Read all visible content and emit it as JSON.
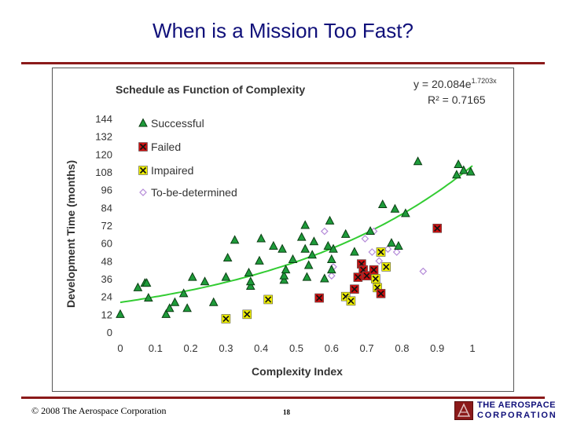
{
  "slide": {
    "title": "When is a Mission Too Fast?",
    "copyright": "© 2008 The Aerospace Corporation",
    "page_number": "18",
    "logo_line1": "THE AEROSPACE",
    "logo_line2": "CORPORATION"
  },
  "chart_data": {
    "type": "scatter",
    "title": "Schedule as Function of Complexity",
    "xlabel": "Complexity Index",
    "ylabel": "Development Time (months)",
    "xlim": [
      0,
      1
    ],
    "ylim": [
      0,
      144
    ],
    "xticks": [
      "0",
      "0.1",
      "0.2",
      "0.3",
      "0.4",
      "0.5",
      "0.6",
      "0.7",
      "0.8",
      "0.9",
      "1"
    ],
    "yticks": [
      "0",
      "12",
      "24",
      "36",
      "48",
      "60",
      "72",
      "84",
      "96",
      "108",
      "120",
      "132",
      "144"
    ],
    "grid": false,
    "legend_position": "top-left",
    "equation": "y = 20.084e",
    "equation_exponent": "1.7203x",
    "r_squared": "R² = 0.7165",
    "trendline": {
      "a": 20.084,
      "b": 1.7203,
      "color": "#33cc33"
    },
    "series": [
      {
        "name": "Successful",
        "marker": "triangle",
        "color": "#1e9b3a",
        "points": [
          [
            0.0,
            12
          ],
          [
            0.05,
            30
          ],
          [
            0.07,
            33
          ],
          [
            0.075,
            33
          ],
          [
            0.08,
            23
          ],
          [
            0.13,
            12
          ],
          [
            0.14,
            16
          ],
          [
            0.155,
            20
          ],
          [
            0.18,
            26
          ],
          [
            0.19,
            16
          ],
          [
            0.205,
            37
          ],
          [
            0.24,
            34
          ],
          [
            0.265,
            20
          ],
          [
            0.3,
            37
          ],
          [
            0.305,
            50
          ],
          [
            0.325,
            62
          ],
          [
            0.365,
            40
          ],
          [
            0.37,
            31
          ],
          [
            0.37,
            34
          ],
          [
            0.395,
            48
          ],
          [
            0.4,
            63
          ],
          [
            0.435,
            58
          ],
          [
            0.46,
            56
          ],
          [
            0.465,
            35
          ],
          [
            0.465,
            38
          ],
          [
            0.47,
            42
          ],
          [
            0.49,
            49
          ],
          [
            0.515,
            64
          ],
          [
            0.525,
            72
          ],
          [
            0.525,
            56
          ],
          [
            0.53,
            37
          ],
          [
            0.535,
            45
          ],
          [
            0.545,
            52
          ],
          [
            0.55,
            61
          ],
          [
            0.58,
            36
          ],
          [
            0.59,
            58
          ],
          [
            0.595,
            75
          ],
          [
            0.6,
            49
          ],
          [
            0.6,
            42
          ],
          [
            0.605,
            56
          ],
          [
            0.64,
            66
          ],
          [
            0.665,
            54
          ],
          [
            0.71,
            68
          ],
          [
            0.745,
            86
          ],
          [
            0.77,
            60
          ],
          [
            0.78,
            83
          ],
          [
            0.79,
            58
          ],
          [
            0.81,
            80
          ],
          [
            0.845,
            115
          ],
          [
            0.955,
            106
          ],
          [
            0.96,
            113
          ],
          [
            0.975,
            109
          ],
          [
            0.995,
            108
          ]
        ]
      },
      {
        "name": "Failed",
        "marker": "x-square",
        "color": "#cc1111",
        "points": [
          [
            0.565,
            23
          ],
          [
            0.665,
            29
          ],
          [
            0.675,
            37
          ],
          [
            0.685,
            46
          ],
          [
            0.69,
            42
          ],
          [
            0.7,
            38
          ],
          [
            0.72,
            42
          ],
          [
            0.74,
            26
          ],
          [
            0.9,
            70
          ]
        ]
      },
      {
        "name": "Impaired",
        "marker": "x-square",
        "color": "#eeee00",
        "points": [
          [
            0.3,
            9
          ],
          [
            0.36,
            12
          ],
          [
            0.42,
            22
          ],
          [
            0.64,
            24
          ],
          [
            0.655,
            21
          ],
          [
            0.725,
            36
          ],
          [
            0.73,
            30
          ],
          [
            0.74,
            54
          ],
          [
            0.755,
            44
          ]
        ]
      },
      {
        "name": "To-be-determined",
        "marker": "diamond",
        "color": "#b48ad8",
        "points": [
          [
            0.58,
            68
          ],
          [
            0.6,
            38
          ],
          [
            0.605,
            44
          ],
          [
            0.695,
            63
          ],
          [
            0.715,
            54
          ],
          [
            0.72,
            68
          ],
          [
            0.735,
            48
          ],
          [
            0.76,
            56
          ],
          [
            0.785,
            54
          ],
          [
            0.86,
            41
          ]
        ]
      }
    ]
  }
}
